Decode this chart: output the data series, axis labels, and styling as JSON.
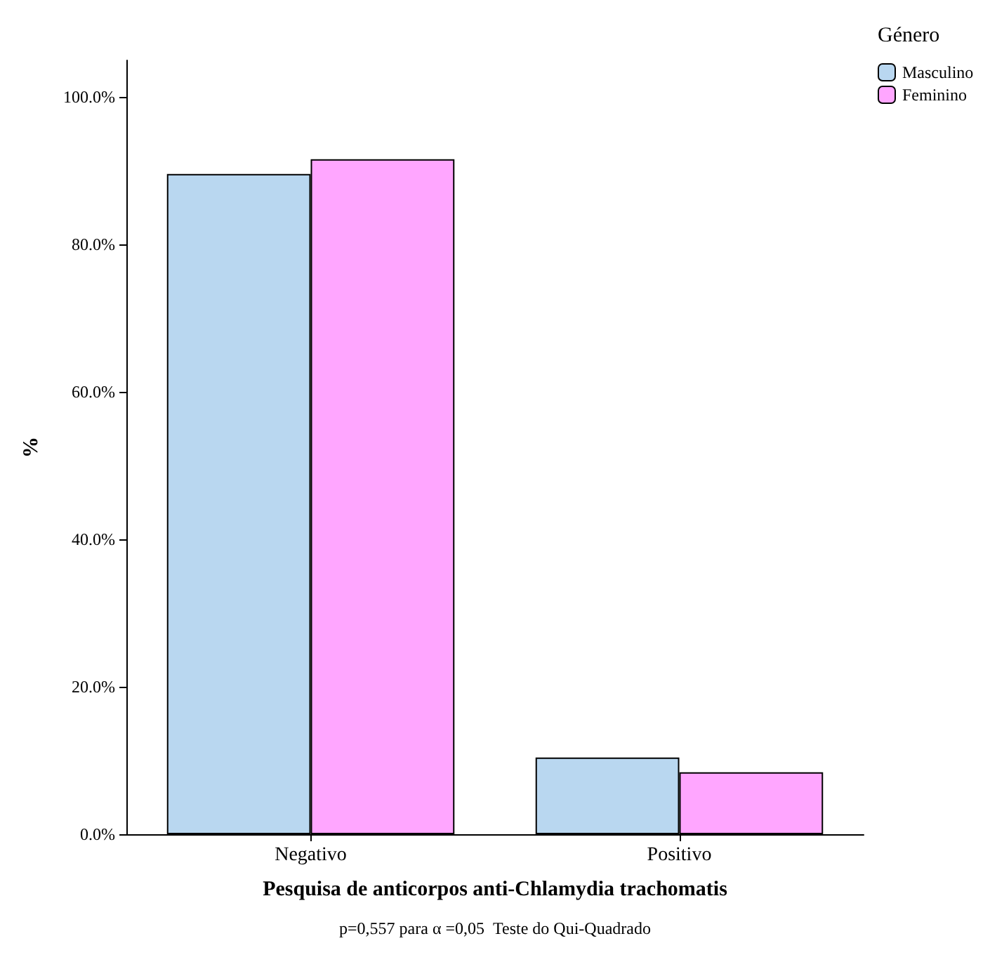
{
  "chart_data": {
    "type": "bar",
    "xlabel": "Pesquisa de anticorpos anti-Chlamydia trachomatis",
    "ylabel": "%",
    "legend_title": "Género",
    "categories": [
      "Negativo",
      "Positivo"
    ],
    "series": [
      {
        "name": "Masculino",
        "color": "#b9d7f0",
        "values": [
          89.6,
          10.4
        ]
      },
      {
        "name": "Feminino",
        "color": "#ffa6ff",
        "values": [
          91.6,
          8.4
        ]
      }
    ],
    "ylim": [
      0,
      105
    ],
    "yticks": [
      {
        "value": 0,
        "label": "0.0%"
      },
      {
        "value": 20,
        "label": "20.0%"
      },
      {
        "value": 40,
        "label": "40.0%"
      },
      {
        "value": 60,
        "label": "60.0%"
      },
      {
        "value": 80,
        "label": "80.0%"
      },
      {
        "value": 100,
        "label": "100.0%"
      }
    ],
    "grid": false,
    "legend": "top right",
    "annotations": [
      "p=0,557 para α =0,05  Teste do Qui-Quadrado"
    ]
  }
}
